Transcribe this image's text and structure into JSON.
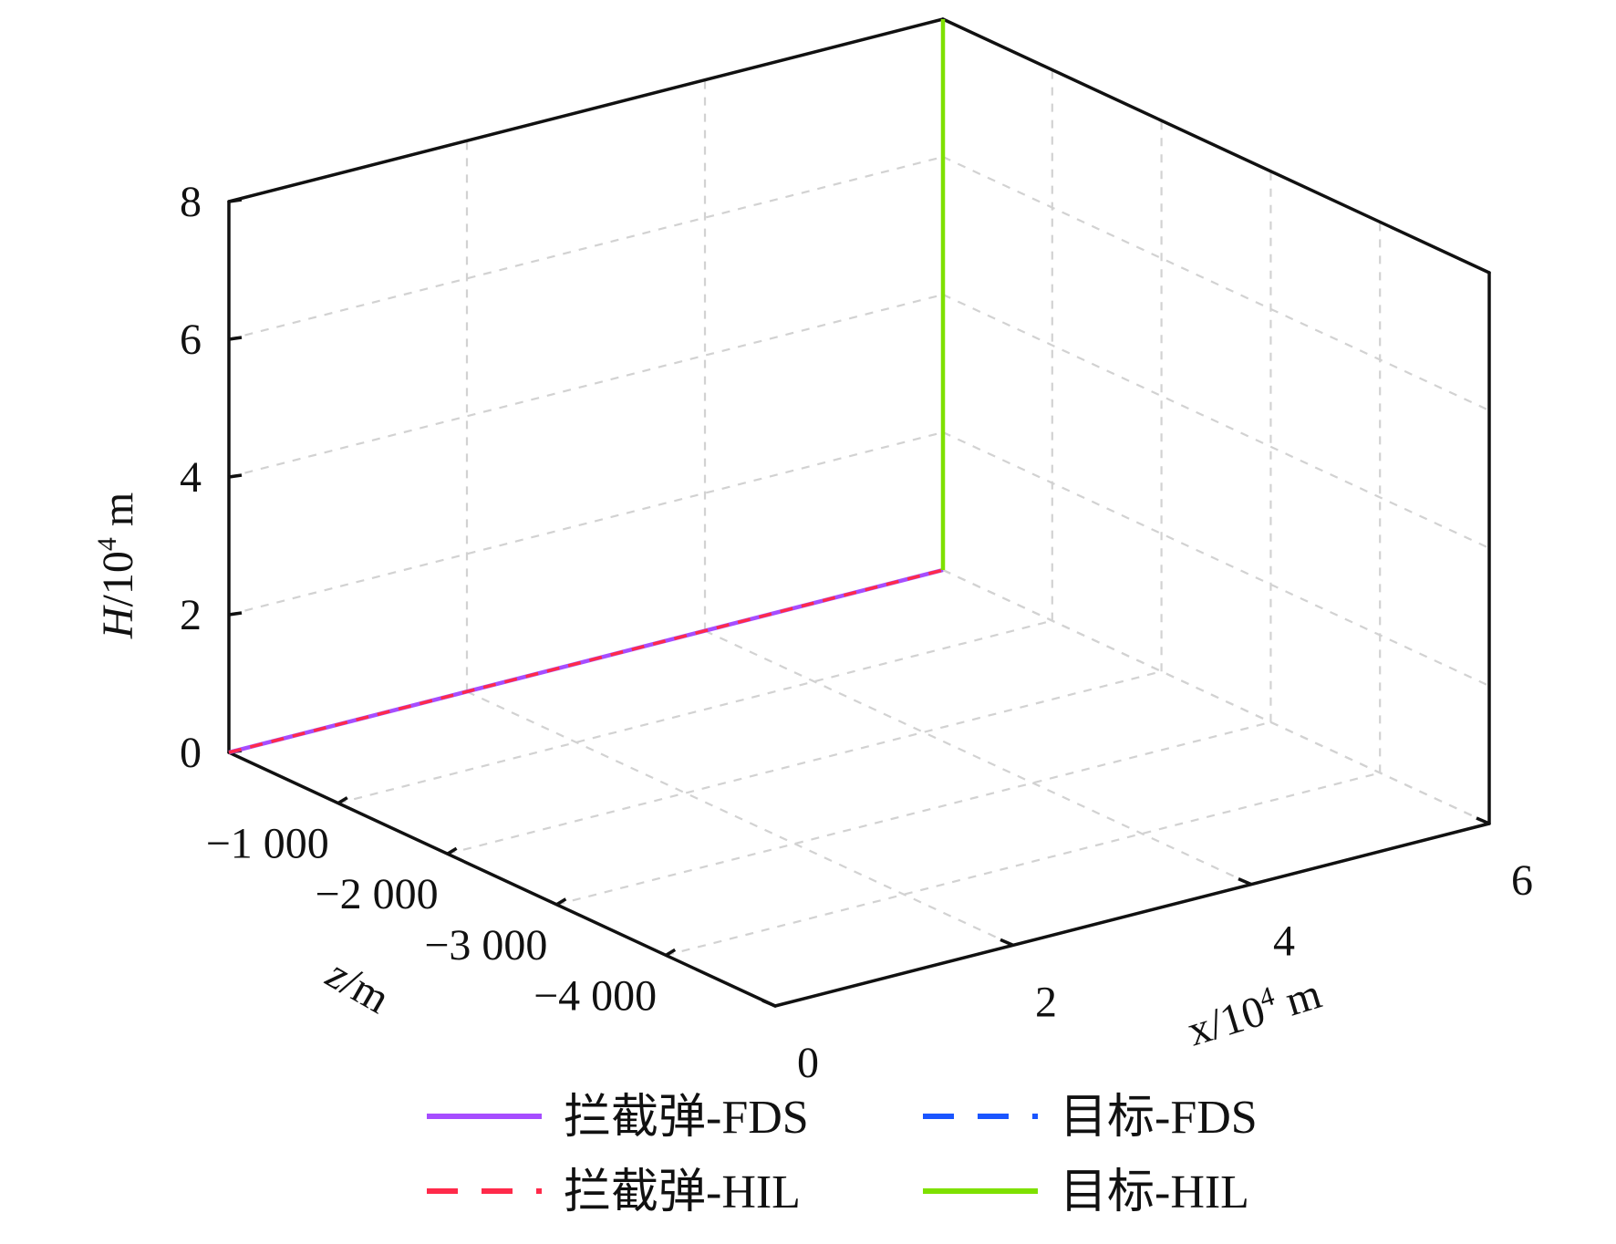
{
  "chart_data": {
    "type": "line3d",
    "axes": {
      "x": {
        "ticks": [
          "0",
          "2",
          "4",
          "6"
        ],
        "tick_values": [
          0,
          2,
          4,
          6
        ],
        "range": [
          0,
          6
        ]
      },
      "z": {
        "ticks": [
          "−1 000",
          "−2 000",
          "−3 000",
          "−4 000"
        ],
        "tick_values": [
          -1000,
          -2000,
          -3000,
          -4000
        ],
        "range": [
          0,
          -5000
        ]
      },
      "H": {
        "ticks": [
          "0",
          "2",
          "4",
          "6",
          "8"
        ],
        "tick_values": [
          0,
          2,
          4,
          6,
          8
        ],
        "range": [
          0,
          8
        ]
      }
    },
    "grid": true,
    "legend_position": "bottom",
    "series": [
      {
        "name": "拦截弹-FDS",
        "color": "#a64dff",
        "dash": "solid",
        "points": [
          [
            0,
            0,
            0
          ],
          [
            6,
            0,
            0
          ]
        ]
      },
      {
        "name": "拦截弹-HIL",
        "color": "#ff2a4a",
        "dash": "dashed",
        "points": [
          [
            0,
            0,
            0
          ],
          [
            6,
            0,
            0
          ]
        ]
      },
      {
        "name": "目标-FDS",
        "color": "#1a55ff",
        "dash": "dashed",
        "points": [
          [
            6,
            0,
            0
          ],
          [
            6,
            0,
            8
          ]
        ]
      },
      {
        "name": "目标-HIL",
        "color": "#7ee000",
        "dash": "solid",
        "points": [
          [
            6,
            0,
            0
          ],
          [
            6,
            0,
            8
          ]
        ]
      }
    ]
  }
}
